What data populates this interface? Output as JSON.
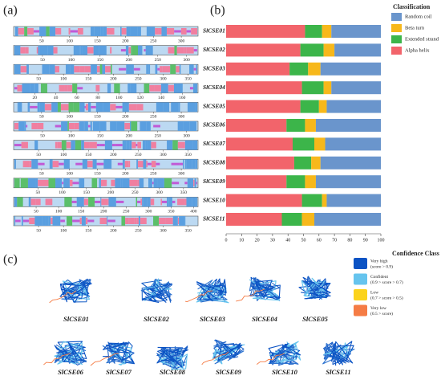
{
  "panels": {
    "a": "(a)",
    "b": "(b)",
    "c": "(c)"
  },
  "tracks": [
    {
      "xlim": [
        0,
        330
      ],
      "ticks": [
        50,
        100,
        150,
        200,
        250,
        300
      ]
    },
    {
      "xlim": [
        0,
        320
      ],
      "ticks": [
        50,
        100,
        150,
        200,
        250,
        300
      ]
    },
    {
      "xlim": [
        0,
        370
      ],
      "ticks": [
        50,
        100,
        150,
        200,
        250,
        300,
        350
      ]
    },
    {
      "xlim": [
        0,
        175
      ],
      "ticks": [
        20,
        40,
        60,
        80,
        100,
        120,
        140,
        160
      ]
    },
    {
      "xlim": [
        0,
        330
      ],
      "ticks": [
        50,
        100,
        150,
        200,
        250,
        300
      ]
    },
    {
      "xlim": [
        0,
        320
      ],
      "ticks": [
        50,
        100,
        150,
        200,
        250,
        300
      ]
    },
    {
      "xlim": [
        0,
        370
      ],
      "ticks": [
        50,
        100,
        150,
        200,
        250,
        300,
        350
      ]
    },
    {
      "xlim": [
        0,
        330
      ],
      "ticks": [
        50,
        100,
        150,
        200,
        250,
        300
      ]
    },
    {
      "xlim": [
        0,
        380
      ],
      "ticks": [
        50,
        100,
        150,
        200,
        250,
        300,
        350
      ]
    },
    {
      "xlim": [
        0,
        410
      ],
      "ticks": [
        50,
        100,
        150,
        200,
        250,
        300,
        350,
        400
      ]
    },
    {
      "xlim": [
        0,
        370
      ],
      "ticks": [
        50,
        100,
        150,
        200,
        250,
        300,
        350
      ]
    }
  ],
  "chart_data": {
    "type": "bar",
    "orientation": "horizontal",
    "stacked": true,
    "legend_title": "Classification",
    "categories": [
      "SlCSE01",
      "SlCSE02",
      "SlCSE03",
      "SlCSE04",
      "SlCSE05",
      "SlCSE06",
      "SlCSE07",
      "SlCSE08",
      "SlCSE09",
      "SlCSE10",
      "SlCSE11"
    ],
    "series": [
      {
        "name": "Alpha helix",
        "color": "#f2646b",
        "values": [
          51,
          48,
          41,
          49,
          48,
          39,
          43,
          44,
          39,
          49,
          36
        ]
      },
      {
        "name": "Extended strand",
        "color": "#3cb54a",
        "values": [
          11,
          15,
          12,
          14,
          12,
          12,
          14,
          11,
          12,
          13,
          13
        ]
      },
      {
        "name": "Beta turn",
        "color": "#f7b81b",
        "values": [
          6,
          7,
          8,
          5,
          5,
          7,
          7,
          6,
          7,
          3,
          8
        ]
      },
      {
        "name": "Random coil",
        "color": "#6a95cc",
        "values": [
          32,
          30,
          39,
          32,
          35,
          42,
          36,
          39,
          42,
          35,
          43
        ]
      }
    ],
    "xlim": [
      0,
      100
    ],
    "xticks": [
      0,
      10,
      20,
      30,
      40,
      50,
      60,
      70,
      80,
      90,
      100
    ]
  },
  "structures": {
    "legend_title": "Confidence Class",
    "classes": [
      {
        "name": "Very high",
        "note": "(score > 0.9)",
        "color": "#0b53c4"
      },
      {
        "name": "Confident",
        "note": "(0.9 > score > 0.7)",
        "color": "#66c4ee"
      },
      {
        "name": "Low",
        "note": "(0.7 > score > 0.5)",
        "color": "#fbd31c"
      },
      {
        "name": "Very low",
        "note": "(0.5 > score)",
        "color": "#f57c45"
      }
    ],
    "labels": [
      "SlCSE01",
      "SlCSE02",
      "SlCSE03",
      "SlCSE04",
      "SlCSE05",
      "SlCSE06",
      "SlCSE07",
      "SlCSE08",
      "SlCSE09",
      "SlCSE10",
      "SlCSE11"
    ]
  }
}
